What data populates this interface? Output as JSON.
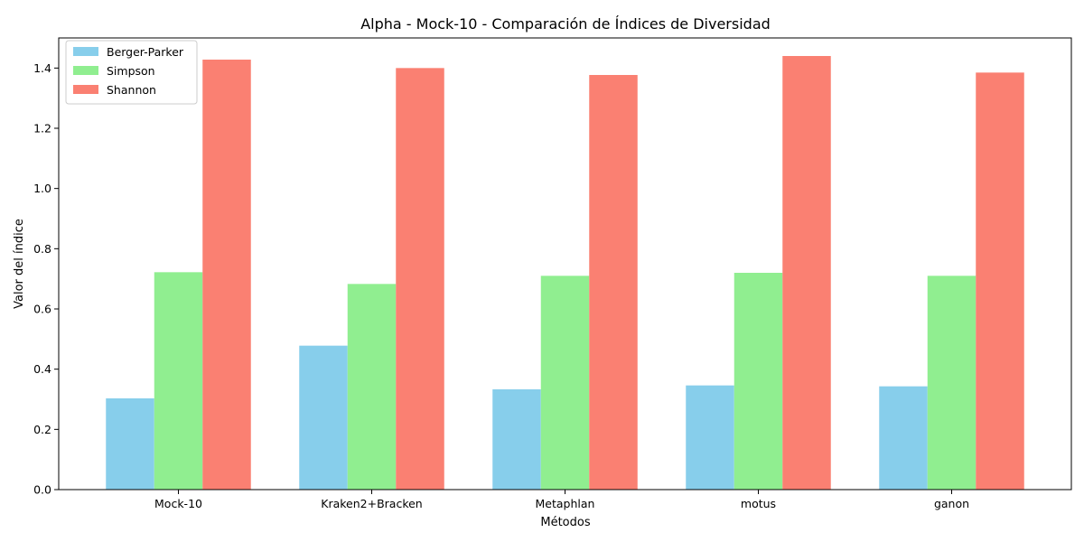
{
  "chart_data": {
    "type": "bar",
    "title": "Alpha - Mock-10 - Comparación de Índices de Diversidad",
    "xlabel": "Métodos",
    "ylabel": "Valor del índice",
    "categories": [
      "Mock-10",
      "Kraken2+Bracken",
      "Metaphlan",
      "motus",
      "ganon"
    ],
    "series": [
      {
        "name": "Berger-Parker",
        "color": "#87ceeb",
        "values": [
          0.303,
          0.478,
          0.333,
          0.346,
          0.343
        ]
      },
      {
        "name": "Simpson",
        "color": "#90ee90",
        "values": [
          0.722,
          0.683,
          0.71,
          0.72,
          0.71
        ]
      },
      {
        "name": "Shannon",
        "color": "#fa8072",
        "values": [
          1.428,
          1.4,
          1.377,
          1.44,
          1.385
        ]
      }
    ],
    "ylim": [
      0,
      1.5
    ],
    "yticks": [
      "0.0",
      "0.2",
      "0.4",
      "0.6",
      "0.8",
      "1.0",
      "1.2",
      "1.4"
    ],
    "grid": false,
    "legend_position": "top-left"
  }
}
